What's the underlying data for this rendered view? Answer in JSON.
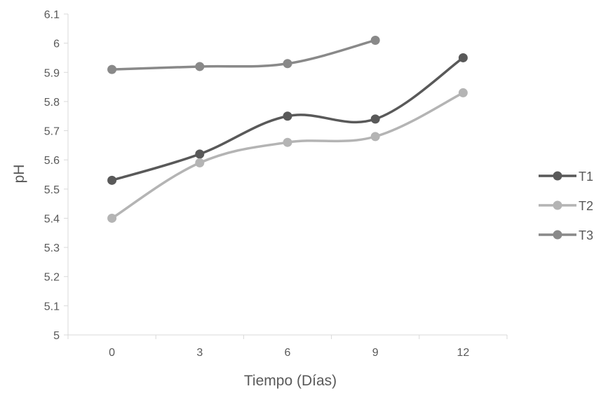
{
  "chart_data": {
    "type": "line",
    "title": "",
    "xlabel": "Tiempo (Días)",
    "ylabel": "pH",
    "categories": [
      "0",
      "3",
      "6",
      "9",
      "12"
    ],
    "ylim": [
      5,
      6.1
    ],
    "yticks": [
      "5",
      "5.1",
      "5.2",
      "5.3",
      "5.4",
      "5.5",
      "5.6",
      "5.7",
      "5.8",
      "5.9",
      "6",
      "6.1"
    ],
    "smooth": true,
    "grid": false,
    "legend_position": "right",
    "series": [
      {
        "name": "T1",
        "color": "#595959",
        "values": [
          5.53,
          5.62,
          5.75,
          5.74,
          5.95
        ]
      },
      {
        "name": "T2",
        "color": "#b4b4b4",
        "values": [
          5.4,
          5.59,
          5.66,
          5.68,
          5.83
        ]
      },
      {
        "name": "T3",
        "color": "#898989",
        "values": [
          5.91,
          5.92,
          5.93,
          6.01,
          null
        ]
      }
    ]
  }
}
